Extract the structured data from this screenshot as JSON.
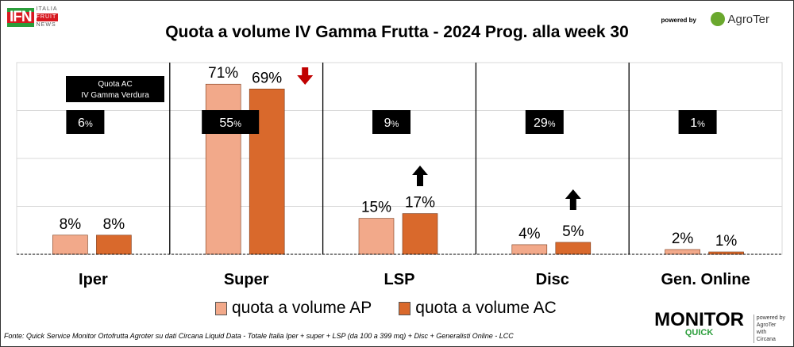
{
  "header": {
    "logo_left_main": "IFN",
    "logo_left_sub": [
      "ITALIA",
      "FRUIT",
      "NEWS"
    ],
    "powered_by": "powered by",
    "logo_right": "AgroTer"
  },
  "chart_data": {
    "type": "bar",
    "title": "Quota a volume IV Gamma Frutta - 2024 Prog. alla week 30",
    "categories": [
      "Iper",
      "Super",
      "LSP",
      "Disc",
      "Gen. Online"
    ],
    "series": [
      {
        "name": "quota a volume AP",
        "color": "#f2a98a",
        "values": [
          8,
          71,
          15,
          4,
          2
        ],
        "labels": [
          "8%",
          "71%",
          "15%",
          "4%",
          "2%"
        ]
      },
      {
        "name": "quota a volume AC",
        "color": "#d9692c",
        "values": [
          8,
          69,
          17,
          5,
          1
        ],
        "labels": [
          "8%",
          "69%",
          "17%",
          "5%",
          "1%"
        ]
      }
    ],
    "ylim": [
      0,
      80
    ],
    "grid": true,
    "legend": "bottom",
    "annotation_title": [
      "Quota AC",
      "IV Gamma Verdura"
    ],
    "verdura_share": [
      "6",
      "55",
      "9",
      "29",
      "1"
    ],
    "verdura_suffix": "%",
    "trend_arrows": [
      "none",
      "down",
      "up",
      "up",
      "none"
    ]
  },
  "footer": {
    "source": "Fonte: Quick Service Monitor Ortofrutta Agroter su dati Circana Liquid Data - Totale Italia Iper + super + LSP (da 100 a 399 mq) + Disc + Generalisti Online - LCC",
    "monitor": "MONITOR",
    "quick": "QUICK",
    "partner": [
      "powered by",
      "AgroTer",
      "with",
      "Circana"
    ]
  }
}
